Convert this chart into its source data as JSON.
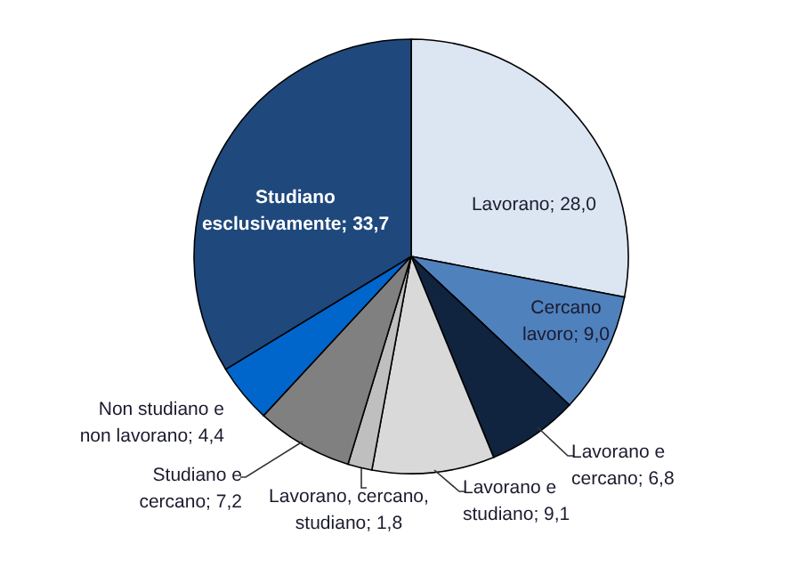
{
  "chart_data": {
    "type": "pie",
    "categories": [
      "Lavorano",
      "Cercano lavoro",
      "Lavorano e cercano",
      "Lavorano e studiano",
      "Lavorano, cercano, studiano",
      "Studiano e cercano",
      "Non studiano e non lavorano",
      "Studiano esclusivamente"
    ],
    "values": [
      28.0,
      9.0,
      6.8,
      9.1,
      1.8,
      7.2,
      4.4,
      33.7
    ],
    "value_labels": [
      "28,0",
      "9,0",
      "6,8",
      "9,1",
      "1,8",
      "7,2",
      "4,4",
      "33,7"
    ],
    "colors": [
      "#dce6f2",
      "#4f81bd",
      "#10243f",
      "#d9d9d9",
      "#bfbfbf",
      "#808080",
      "#0066cc",
      "#1f497d"
    ]
  }
}
